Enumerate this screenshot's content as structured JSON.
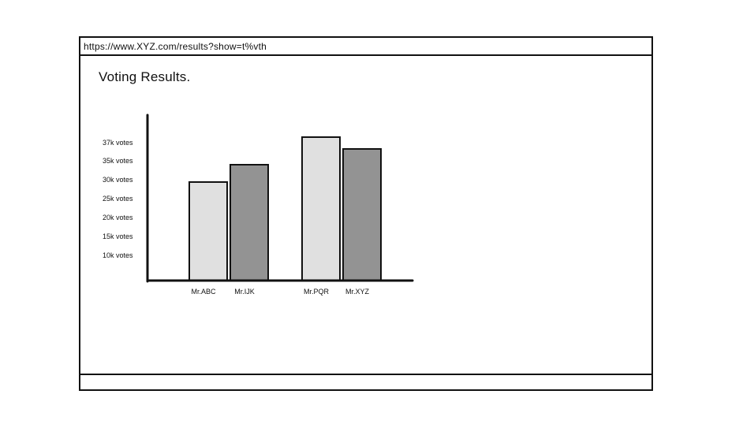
{
  "browser": {
    "url": "https://www.XYZ.com/results?show=t%vth"
  },
  "page": {
    "title": "Voting Results."
  },
  "colors": {
    "light_bar": "#e0e0e0",
    "dark_bar": "#939393",
    "outline": "#111111"
  },
  "chart_data": {
    "type": "bar",
    "title": "",
    "xlabel": "",
    "ylabel": "",
    "categories": [
      "Mr.ABC",
      "Mr.IJK",
      "Mr.PQR",
      "Mr.XYZ"
    ],
    "values": [
      31000,
      34500,
      38000,
      35500
    ],
    "bar_colors": [
      "#e0e0e0",
      "#939393",
      "#e0e0e0",
      "#939393"
    ],
    "y_ticks": [
      {
        "value": 10000,
        "label": "10k votes"
      },
      {
        "value": 15000,
        "label": "15k votes"
      },
      {
        "value": 20000,
        "label": "20k votes"
      },
      {
        "value": 25000,
        "label": "25k votes"
      },
      {
        "value": 30000,
        "label": "30k votes"
      },
      {
        "value": 35000,
        "label": "35k votes"
      },
      {
        "value": 37000,
        "label": "37k votes"
      }
    ],
    "grid": false,
    "legend": "none"
  }
}
